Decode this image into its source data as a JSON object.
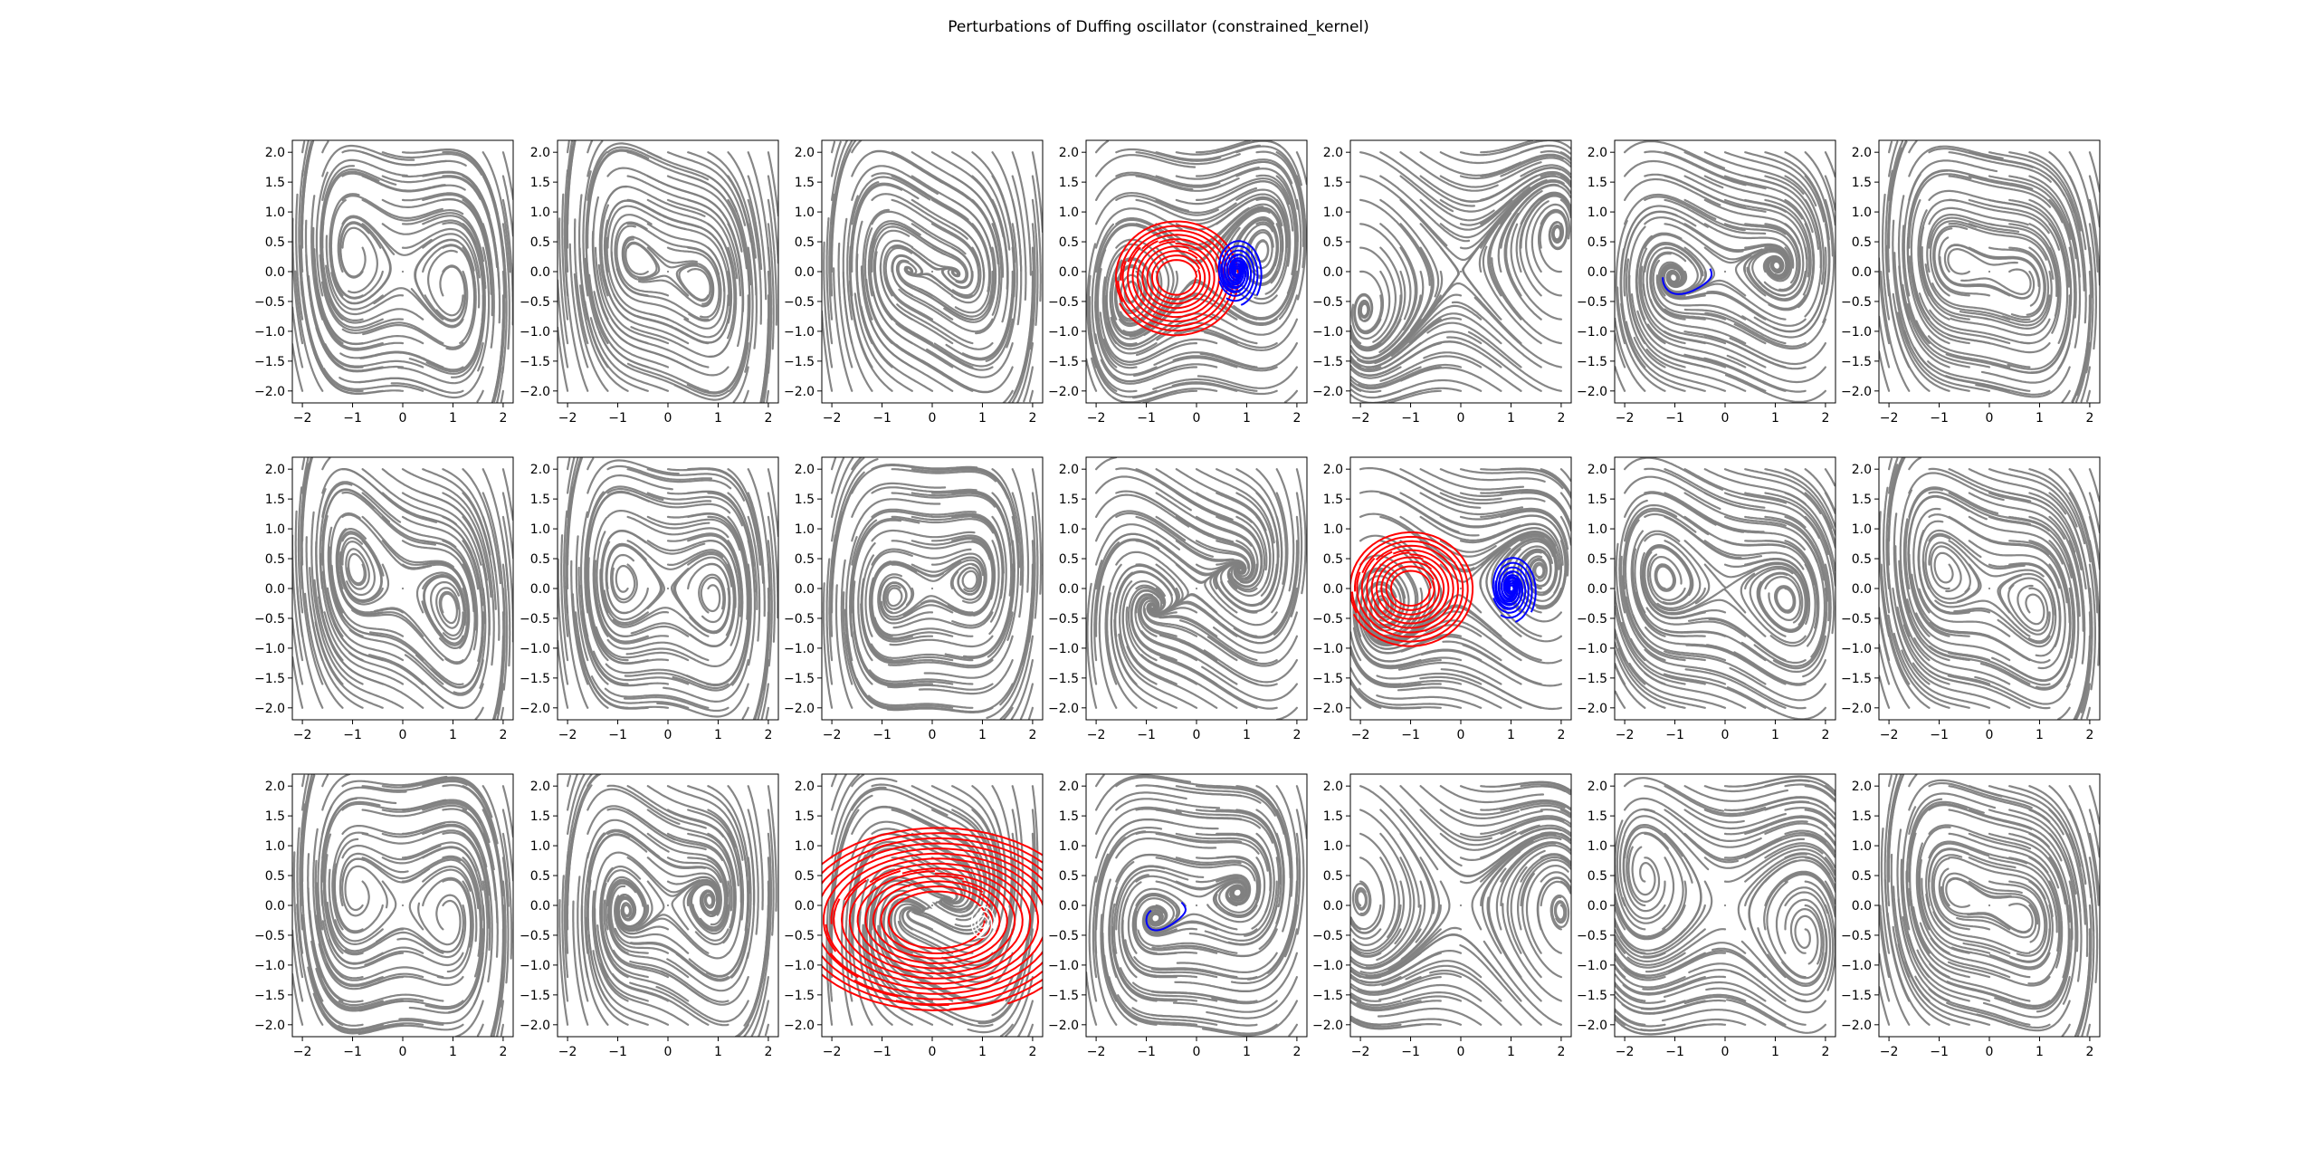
{
  "title": "Perturbations of Duffing oscillator (constrained_kernel)",
  "colors": {
    "streamline": "#808080",
    "stable_basin": "#ff0000",
    "basin_2": "#0000ff",
    "axes": "#000000",
    "background": "#ffffff"
  },
  "chart_data": {
    "type": "streamplot_grid",
    "rows": 3,
    "cols": 7,
    "xlim": [
      -2.2,
      2.2
    ],
    "ylim": [
      -2.2,
      2.2
    ],
    "x_ticks": [
      -2,
      -1,
      0,
      1,
      2
    ],
    "x_tick_labels": [
      "−2",
      "−1",
      "0",
      "1",
      "2"
    ],
    "y_ticks": [
      2.0,
      1.5,
      1.0,
      0.5,
      0.0,
      -0.5,
      -1.0,
      -1.5,
      -2.0
    ],
    "y_tick_labels": [
      "2.0",
      "1.5",
      "1.0",
      "0.5",
      "0.0",
      "−0.5",
      "−1.0",
      "−1.5",
      "−2.0"
    ],
    "panels": [
      {
        "index": 1,
        "row": 0,
        "col": 0,
        "highlight": "none"
      },
      {
        "index": 2,
        "row": 0,
        "col": 1,
        "highlight": "none"
      },
      {
        "index": 3,
        "row": 0,
        "col": 2,
        "highlight": "none"
      },
      {
        "index": 4,
        "row": 0,
        "col": 3,
        "highlight": "red_blue",
        "red_center": [
          -0.4,
          -0.1
        ],
        "blue_center": [
          0.8,
          0.0
        ]
      },
      {
        "index": 5,
        "row": 0,
        "col": 4,
        "highlight": "none"
      },
      {
        "index": 6,
        "row": 0,
        "col": 5,
        "highlight": "blue_trajectory"
      },
      {
        "index": 7,
        "row": 0,
        "col": 6,
        "highlight": "none"
      },
      {
        "index": 8,
        "row": 1,
        "col": 0,
        "highlight": "none"
      },
      {
        "index": 9,
        "row": 1,
        "col": 1,
        "highlight": "none"
      },
      {
        "index": 10,
        "row": 1,
        "col": 2,
        "highlight": "none"
      },
      {
        "index": 11,
        "row": 1,
        "col": 3,
        "highlight": "none"
      },
      {
        "index": 12,
        "row": 1,
        "col": 4,
        "highlight": "red_blue",
        "red_center": [
          -1.0,
          0.0
        ],
        "blue_center": [
          1.0,
          0.0
        ]
      },
      {
        "index": 13,
        "row": 1,
        "col": 5,
        "highlight": "none"
      },
      {
        "index": 14,
        "row": 1,
        "col": 6,
        "highlight": "none"
      },
      {
        "index": 15,
        "row": 2,
        "col": 0,
        "highlight": "none"
      },
      {
        "index": 16,
        "row": 2,
        "col": 1,
        "highlight": "none"
      },
      {
        "index": 17,
        "row": 2,
        "col": 2,
        "highlight": "red_basin",
        "red_center": [
          1.0,
          -0.3
        ]
      },
      {
        "index": 18,
        "row": 2,
        "col": 3,
        "highlight": "blue_trajectory"
      },
      {
        "index": 19,
        "row": 2,
        "col": 4,
        "highlight": "none"
      },
      {
        "index": 20,
        "row": 2,
        "col": 5,
        "highlight": "none"
      },
      {
        "index": 21,
        "row": 2,
        "col": 6,
        "highlight": "none"
      }
    ]
  }
}
